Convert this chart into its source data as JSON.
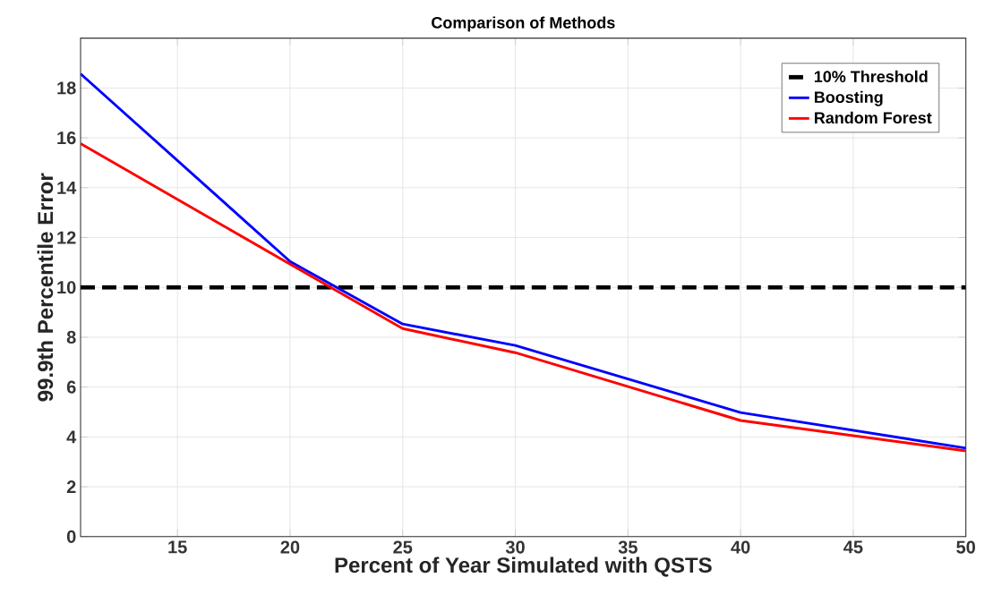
{
  "chart_data": {
    "type": "line",
    "title": "Comparison of Methods",
    "xlabel": "Percent of Year Simulated with QSTS",
    "ylabel": "99.9th Percentile Error",
    "xlim": [
      10.7,
      50
    ],
    "ylim": [
      0,
      20
    ],
    "xticks": [
      15,
      20,
      25,
      30,
      35,
      40,
      45,
      50
    ],
    "yticks": [
      0,
      2,
      4,
      6,
      8,
      10,
      12,
      14,
      16,
      18
    ],
    "grid": true,
    "legend": "top right",
    "marker": "none",
    "series": [
      {
        "name": "10% Threshold",
        "color": "#000000",
        "line_style": "dashed",
        "x": [
          10.7,
          50
        ],
        "values": [
          10,
          10
        ]
      },
      {
        "name": "Boosting",
        "color": "#0000ff",
        "line_style": "solid",
        "x": [
          10.7,
          20,
          25,
          30,
          40,
          50
        ],
        "values": [
          18.57,
          11.04,
          8.53,
          7.67,
          4.98,
          3.55
        ]
      },
      {
        "name": "Random Forest",
        "color": "#ff0000",
        "line_style": "solid",
        "x": [
          10.7,
          20,
          25,
          30,
          40,
          50
        ],
        "values": [
          15.77,
          10.93,
          8.35,
          7.38,
          4.66,
          3.44
        ]
      }
    ]
  }
}
